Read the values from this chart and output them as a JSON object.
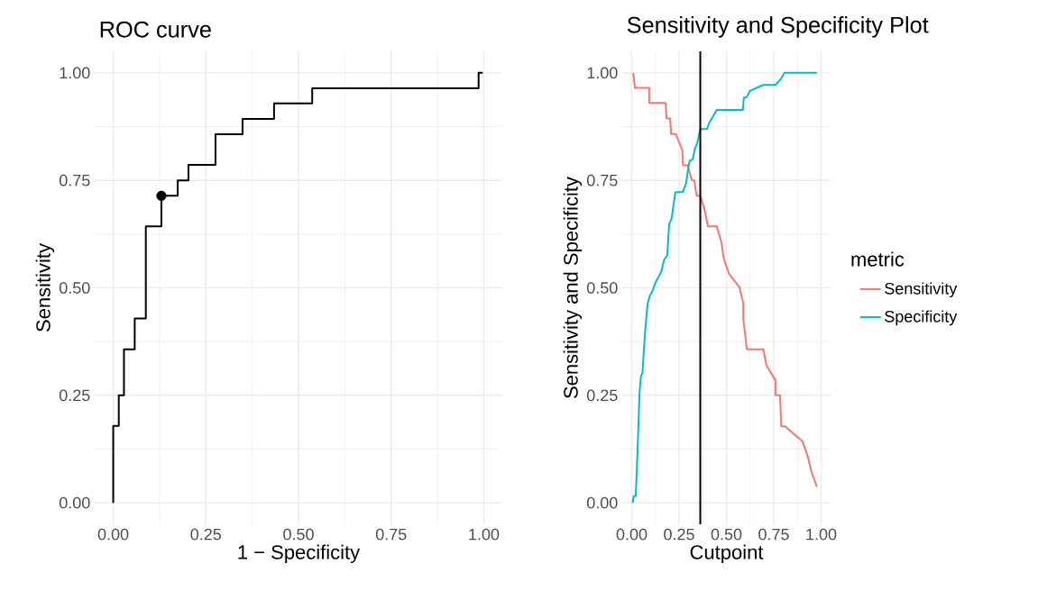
{
  "chart_data": [
    {
      "type": "step",
      "title": "ROC curve",
      "xlabel": "1 − Specificity",
      "ylabel": "Sensitivity",
      "grid": true,
      "xlim": [
        -0.05,
        1.05
      ],
      "ylim": [
        -0.05,
        1.05
      ],
      "xticks": [
        {
          "value": 0,
          "label": "0.00"
        },
        {
          "value": 0.25,
          "label": "0.25"
        },
        {
          "value": 0.5,
          "label": "0.50"
        },
        {
          "value": 0.75,
          "label": "0.75"
        },
        {
          "value": 1,
          "label": "1.00"
        }
      ],
      "yticks": [
        {
          "value": 0,
          "label": "0.00"
        },
        {
          "value": 0.25,
          "label": "0.25"
        },
        {
          "value": 0.5,
          "label": "0.50"
        },
        {
          "value": 0.75,
          "label": "0.75"
        },
        {
          "value": 1,
          "label": "1.00"
        }
      ],
      "series": [
        {
          "type": "step",
          "color": "#000000",
          "x": [
            0,
            0,
            0.015,
            0.029,
            0.058,
            0.088,
            0.13,
            0.174,
            0.203,
            0.276,
            0.349,
            0.434,
            0.537,
            0.986,
            0.997
          ],
          "values": [
            0,
            0.179,
            0.25,
            0.357,
            0.429,
            0.643,
            0.714,
            0.75,
            0.786,
            0.857,
            0.893,
            0.929,
            0.964,
            1,
            1
          ]
        },
        {
          "type": "scatter",
          "color": "#000000",
          "marker": "circle",
          "x": [
            0.13
          ],
          "values": [
            0.714
          ]
        }
      ]
    },
    {
      "type": "line",
      "title": "Sensitivity and Specificity Plot",
      "xlabel": "Cutpoint",
      "ylabel": "Sensitivity and Specificity",
      "grid": true,
      "legend": "right",
      "legend_title": "metric",
      "line_style": "solid",
      "xlim": [
        -0.05,
        1.05
      ],
      "ylim": [
        -0.05,
        1.05
      ],
      "xticks": [
        {
          "value": 0,
          "label": "0.00"
        },
        {
          "value": 0.25,
          "label": "0.25"
        },
        {
          "value": 0.5,
          "label": "0.50"
        },
        {
          "value": 0.75,
          "label": "0.75"
        },
        {
          "value": 1,
          "label": "1.00"
        }
      ],
      "yticks": [
        {
          "value": 0,
          "label": "0.00"
        },
        {
          "value": 0.25,
          "label": "0.25"
        },
        {
          "value": 0.5,
          "label": "0.50"
        },
        {
          "value": 0.75,
          "label": "0.75"
        },
        {
          "value": 1,
          "label": "1.00"
        }
      ],
      "ref_lines": [
        {
          "axis": "x",
          "value": 0.362,
          "color": "#000000"
        }
      ],
      "series": [
        {
          "name": "Sensitivity",
          "color": "#f8766d",
          "x": [
            0.008,
            0.017,
            0.092,
            0.092,
            0.179,
            0.184,
            0.203,
            0.208,
            0.232,
            0.267,
            0.271,
            0.295,
            0.317,
            0.33,
            0.343,
            0.362,
            0.386,
            0.402,
            0.449,
            0.473,
            0.486,
            0.513,
            0.568,
            0.589,
            0.589,
            0.608,
            0.695,
            0.711,
            0.759,
            0.759,
            0.783,
            0.79,
            0.81,
            0.902,
            0.93,
            0.949,
            0.978
          ],
          "values": [
            1,
            0.965,
            0.965,
            0.93,
            0.93,
            0.894,
            0.894,
            0.858,
            0.858,
            0.821,
            0.785,
            0.785,
            0.751,
            0.75,
            0.714,
            0.714,
            0.68,
            0.643,
            0.643,
            0.607,
            0.568,
            0.533,
            0.502,
            0.465,
            0.428,
            0.357,
            0.357,
            0.32,
            0.285,
            0.25,
            0.25,
            0.178,
            0.178,
            0.143,
            0.107,
            0.072,
            0.037
          ]
        },
        {
          "name": "Specificity",
          "color": "#00bfc4",
          "x": [
            0.005,
            0.01,
            0.021,
            0.025,
            0.032,
            0.041,
            0.048,
            0.057,
            0.065,
            0.073,
            0.084,
            0.095,
            0.108,
            0.124,
            0.156,
            0.171,
            0.187,
            0.198,
            0.211,
            0.23,
            0.27,
            0.287,
            0.298,
            0.306,
            0.322,
            0.333,
            0.346,
            0.362,
            0.398,
            0.41,
            0.449,
            0.587,
            0.592,
            0.608,
            0.624,
            0.695,
            0.759,
            0.79,
            0.806,
            0.978
          ],
          "values": [
            0,
            0.015,
            0.016,
            0.056,
            0.135,
            0.254,
            0.292,
            0.303,
            0.362,
            0.411,
            0.463,
            0.481,
            0.491,
            0.511,
            0.537,
            0.565,
            0.575,
            0.648,
            0.662,
            0.722,
            0.723,
            0.743,
            0.778,
            0.795,
            0.799,
            0.823,
            0.837,
            0.869,
            0.87,
            0.884,
            0.914,
            0.914,
            0.942,
            0.944,
            0.958,
            0.972,
            0.972,
            0.987,
            1,
            1
          ]
        }
      ]
    }
  ]
}
